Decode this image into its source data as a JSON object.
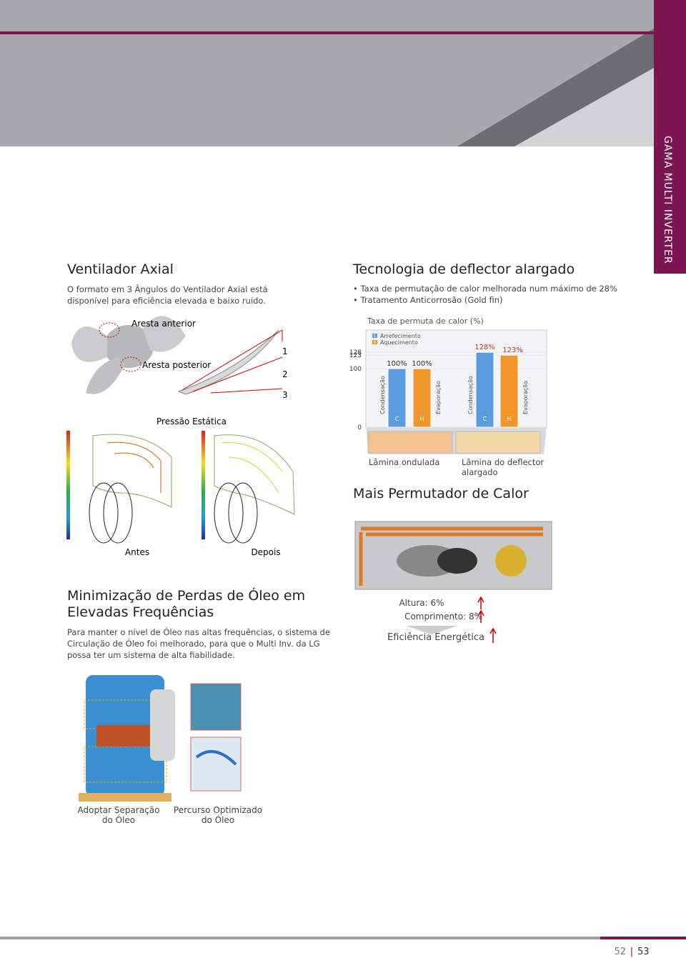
{
  "side_tab": "GAMA MULTI INVERTER",
  "axial_fan": {
    "title": "Ventilador Axial",
    "text": "O formato em 3 Ângulos do Ventilador Axial está disponível para eficiência elevada e baixo ruído.",
    "labels": [
      "Aresta anterior",
      "Aresta posterior",
      "1",
      "2",
      "3"
    ],
    "pressure_title": "Pressão Estática",
    "captions": [
      "Antes",
      "Depois"
    ]
  },
  "deflector": {
    "title": "Tecnologia de deflector alargado",
    "bullets": [
      "Taxa de permutação de calor melhorada num máximo de 28%",
      "Tratamento Anticorrosão (Gold fin)"
    ],
    "chart": {
      "type": "bar",
      "title": "Taxa de permuta de calor (%)",
      "ylim": [
        0,
        166
      ],
      "yticks": [
        0,
        100,
        123,
        128
      ],
      "legend": [
        {
          "key": "C",
          "label": "Arrefecimento",
          "color": "#5b9be0"
        },
        {
          "key": "H",
          "label": "Aquecimento",
          "color": "#f0962a"
        }
      ],
      "groups": [
        {
          "name": "Lâmina ondulada",
          "left_label": "Condensação",
          "right_label": "Evaporação",
          "values": [
            100,
            100
          ],
          "value_labels": [
            "100%",
            "100%"
          ]
        },
        {
          "name": "Lâmina do deflector alargado",
          "left_label": "Condensação",
          "right_label": "Evaporação",
          "values": [
            128,
            123
          ],
          "value_labels": [
            "128%",
            "123%"
          ]
        }
      ]
    }
  },
  "exchanger": {
    "title": "Mais Permutador de Calor",
    "items": [
      "Altura: 6%",
      "Comprimento: 8%",
      "Eficiência Energética"
    ]
  },
  "oil": {
    "title": "Minimização de Perdas de Óleo em Elevadas Frequências",
    "text": "Para manter o nível de Óleo nas altas frequências, o sistema de Circulação de Óleo foi melhorado, para que o Multi Inv. da LG possa ter um sistema de alta fiabilidade.",
    "captions": [
      "Adoptar Separação do Óleo",
      "Percurso Optimizado do Óleo"
    ]
  },
  "page_numbers": [
    "52",
    "53"
  ]
}
